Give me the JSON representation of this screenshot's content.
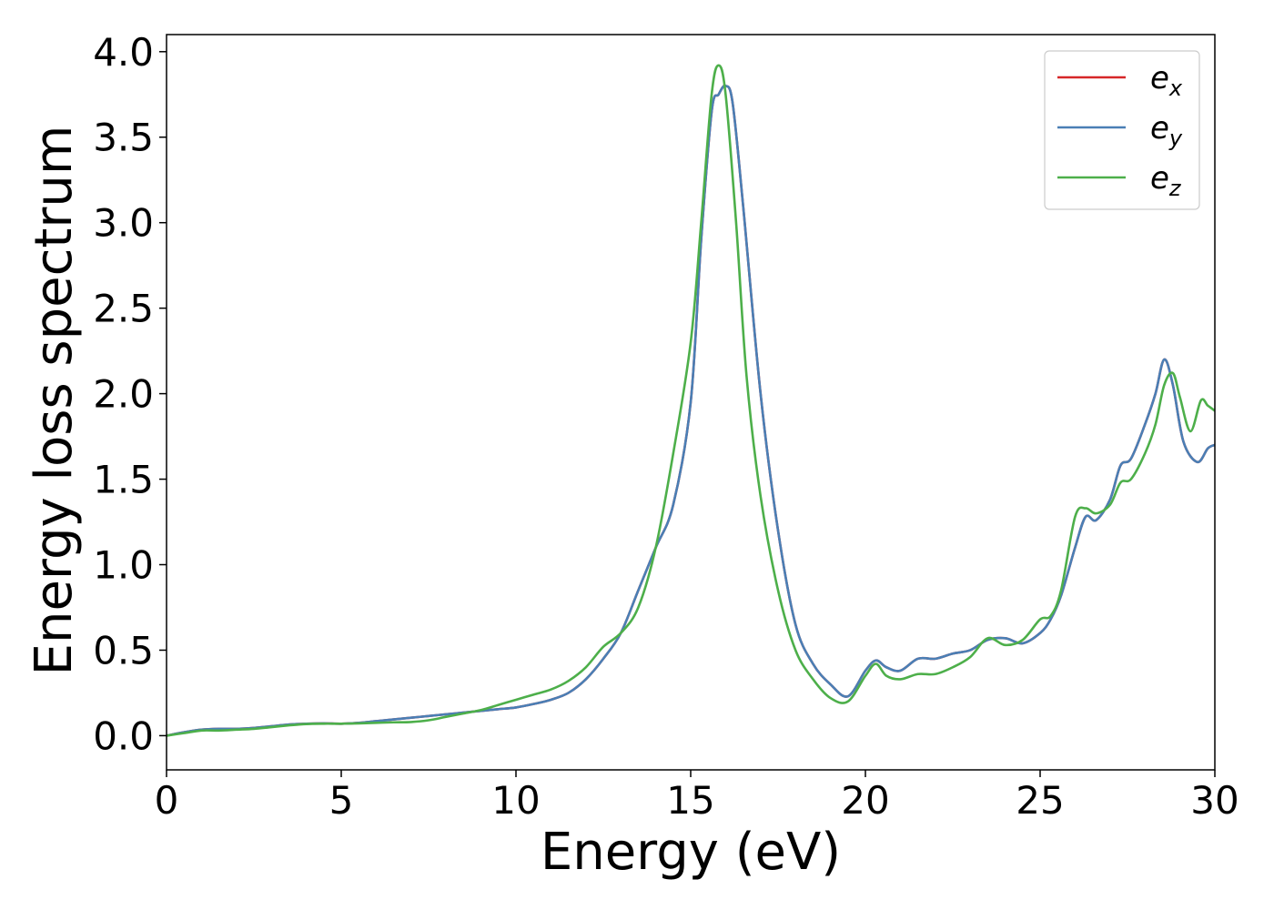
{
  "chart_data": {
    "type": "line",
    "title": "",
    "xlabel": "Energy (eV)",
    "ylabel": "Energy loss spectrum",
    "xlim": [
      0,
      30
    ],
    "ylim": [
      -0.2,
      4.1
    ],
    "xticks": [
      0,
      5,
      10,
      15,
      20,
      25,
      30
    ],
    "xtick_labels": [
      "0",
      "5",
      "10",
      "15",
      "20",
      "25",
      "30"
    ],
    "yticks": [
      0.0,
      0.5,
      1.0,
      1.5,
      2.0,
      2.5,
      3.0,
      3.5,
      4.0
    ],
    "ytick_labels": [
      "0.0",
      "0.5",
      "1.0",
      "1.5",
      "2.0",
      "2.5",
      "3.0",
      "3.5",
      "4.0"
    ],
    "grid": false,
    "legend_position": "top-right",
    "series": [
      {
        "name": "e",
        "sub": "x",
        "color": "#d62728",
        "x": [
          0,
          0.5,
          1,
          1.5,
          2,
          2.5,
          3,
          3.5,
          4,
          4.5,
          5,
          5.5,
          6,
          6.5,
          7,
          7.5,
          8,
          8.5,
          9,
          9.5,
          10,
          10.5,
          11,
          11.5,
          12,
          12.5,
          13,
          13.5,
          14,
          14.5,
          15,
          15.3,
          15.6,
          15.8,
          16.0,
          16.2,
          16.5,
          17,
          17.5,
          18,
          18.5,
          19,
          19.5,
          20,
          20.3,
          20.6,
          21,
          21.5,
          22,
          22.5,
          23,
          23.5,
          24,
          24.5,
          25,
          25.3,
          25.6,
          26,
          26.3,
          26.6,
          27,
          27.3,
          27.6,
          28,
          28.3,
          28.55,
          28.8,
          29.1,
          29.5,
          29.8,
          30
        ],
        "y": [
          0.0,
          0.02,
          0.035,
          0.04,
          0.04,
          0.045,
          0.055,
          0.065,
          0.07,
          0.072,
          0.07,
          0.075,
          0.085,
          0.095,
          0.105,
          0.115,
          0.125,
          0.135,
          0.145,
          0.155,
          0.165,
          0.185,
          0.21,
          0.25,
          0.33,
          0.45,
          0.6,
          0.85,
          1.1,
          1.35,
          1.95,
          2.9,
          3.65,
          3.75,
          3.8,
          3.7,
          3.1,
          2.0,
          1.2,
          0.65,
          0.42,
          0.3,
          0.23,
          0.38,
          0.44,
          0.4,
          0.38,
          0.45,
          0.45,
          0.48,
          0.5,
          0.56,
          0.57,
          0.54,
          0.6,
          0.68,
          0.82,
          1.1,
          1.28,
          1.26,
          1.38,
          1.58,
          1.62,
          1.82,
          2.0,
          2.2,
          2.05,
          1.72,
          1.6,
          1.68,
          1.7
        ]
      },
      {
        "name": "e",
        "sub": "y",
        "color": "#4a7fb5",
        "x": [
          0,
          0.5,
          1,
          1.5,
          2,
          2.5,
          3,
          3.5,
          4,
          4.5,
          5,
          5.5,
          6,
          6.5,
          7,
          7.5,
          8,
          8.5,
          9,
          9.5,
          10,
          10.5,
          11,
          11.5,
          12,
          12.5,
          13,
          13.5,
          14,
          14.5,
          15,
          15.3,
          15.6,
          15.8,
          16.0,
          16.2,
          16.5,
          17,
          17.5,
          18,
          18.5,
          19,
          19.5,
          20,
          20.3,
          20.6,
          21,
          21.5,
          22,
          22.5,
          23,
          23.5,
          24,
          24.5,
          25,
          25.3,
          25.6,
          26,
          26.3,
          26.6,
          27,
          27.3,
          27.6,
          28,
          28.3,
          28.55,
          28.8,
          29.1,
          29.5,
          29.8,
          30
        ],
        "y": [
          0.0,
          0.02,
          0.035,
          0.04,
          0.04,
          0.045,
          0.055,
          0.065,
          0.07,
          0.072,
          0.07,
          0.075,
          0.085,
          0.095,
          0.105,
          0.115,
          0.125,
          0.135,
          0.145,
          0.155,
          0.165,
          0.185,
          0.21,
          0.25,
          0.33,
          0.45,
          0.6,
          0.85,
          1.1,
          1.35,
          1.95,
          2.9,
          3.65,
          3.75,
          3.8,
          3.7,
          3.1,
          2.0,
          1.2,
          0.65,
          0.42,
          0.3,
          0.23,
          0.38,
          0.44,
          0.4,
          0.38,
          0.45,
          0.45,
          0.48,
          0.5,
          0.56,
          0.57,
          0.54,
          0.6,
          0.68,
          0.82,
          1.1,
          1.28,
          1.26,
          1.38,
          1.58,
          1.62,
          1.82,
          2.0,
          2.2,
          2.05,
          1.72,
          1.6,
          1.68,
          1.7
        ]
      },
      {
        "name": "e",
        "sub": "z",
        "color": "#4daf4a",
        "x": [
          0,
          0.5,
          1,
          1.5,
          2,
          2.5,
          3,
          3.5,
          4,
          4.5,
          5,
          5.5,
          6,
          6.5,
          7,
          7.5,
          8,
          8.5,
          9,
          9.5,
          10,
          10.5,
          11,
          11.5,
          12,
          12.5,
          13,
          13.5,
          14,
          14.5,
          15,
          15.3,
          15.6,
          15.8,
          16.0,
          16.3,
          16.6,
          17,
          17.5,
          18,
          18.5,
          19,
          19.5,
          20,
          20.3,
          20.6,
          21,
          21.5,
          22,
          22.5,
          23,
          23.5,
          24,
          24.5,
          25,
          25.3,
          25.6,
          26,
          26.3,
          26.6,
          27,
          27.3,
          27.6,
          28,
          28.3,
          28.55,
          28.8,
          29.0,
          29.3,
          29.6,
          29.8,
          30
        ],
        "y": [
          0.0,
          0.015,
          0.03,
          0.03,
          0.035,
          0.04,
          0.05,
          0.06,
          0.068,
          0.07,
          0.07,
          0.072,
          0.075,
          0.078,
          0.08,
          0.09,
          0.11,
          0.13,
          0.15,
          0.18,
          0.21,
          0.24,
          0.27,
          0.32,
          0.4,
          0.52,
          0.6,
          0.75,
          1.1,
          1.65,
          2.3,
          3.0,
          3.75,
          3.92,
          3.75,
          3.0,
          2.1,
          1.4,
          0.85,
          0.5,
          0.33,
          0.22,
          0.2,
          0.35,
          0.42,
          0.35,
          0.33,
          0.36,
          0.36,
          0.4,
          0.46,
          0.57,
          0.53,
          0.56,
          0.68,
          0.7,
          0.85,
          1.28,
          1.33,
          1.3,
          1.35,
          1.48,
          1.5,
          1.65,
          1.82,
          2.05,
          2.12,
          1.98,
          1.78,
          1.96,
          1.93,
          1.9
        ]
      }
    ]
  }
}
